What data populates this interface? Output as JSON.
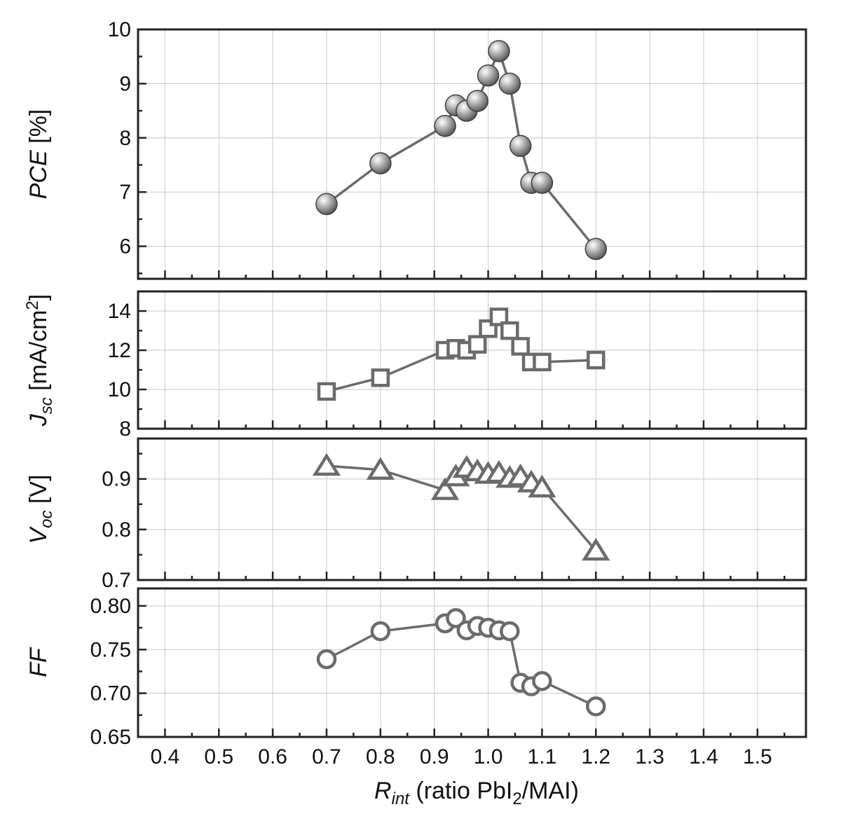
{
  "chart_data": {
    "type": "scatter",
    "x_axis": {
      "label_main": "R",
      "label_sub": "int",
      "label_rest_a": " (ratio PbI",
      "label_rest_sub": "2",
      "label_rest_b": "/MAI)",
      "range": [
        0.35,
        1.59
      ],
      "ticks": [
        "0.4",
        "0.5",
        "0.6",
        "0.7",
        "0.8",
        "0.9",
        "1.0",
        "1.1",
        "1.2",
        "1.3",
        "1.4",
        "1.5"
      ],
      "minor_ticks": true,
      "grid": true
    },
    "x": [
      0.7,
      0.8,
      0.92,
      0.94,
      0.96,
      0.98,
      1.0,
      1.02,
      1.04,
      1.06,
      1.08,
      1.1,
      1.2
    ],
    "panels": [
      {
        "id": "pce",
        "ylabel_italic": "PCE",
        "ylabel_rest": " [%]",
        "ylim": [
          5.4,
          10.0
        ],
        "yticks": [
          "6",
          "7",
          "8",
          "9",
          "10"
        ],
        "marker": "sphere",
        "color": "#7a7a7a",
        "values": [
          6.78,
          7.53,
          8.22,
          8.6,
          8.5,
          8.68,
          9.15,
          9.6,
          9.0,
          7.85,
          7.17,
          7.17,
          5.95
        ]
      },
      {
        "id": "jsc",
        "ylabel_italic": "J",
        "ylabel_sub": "sc",
        "ylabel_rest": " [mA/cm",
        "ylabel_sup": "2",
        "ylabel_end": "]",
        "ylim": [
          8,
          15
        ],
        "yticks": [
          "8",
          "10",
          "12",
          "14"
        ],
        "marker": "square",
        "color": "#6b6b6b",
        "values": [
          9.9,
          10.6,
          12.0,
          12.1,
          12.0,
          12.3,
          13.1,
          13.7,
          13.0,
          12.2,
          11.4,
          11.4,
          11.5
        ]
      },
      {
        "id": "voc",
        "ylabel_italic": "V",
        "ylabel_sub": "oc",
        "ylabel_rest": " [V]",
        "ylim": [
          0.7,
          0.98
        ],
        "yticks": [
          "0.7",
          "0.8",
          "0.9"
        ],
        "marker": "triangle",
        "color": "#6b6b6b",
        "values": [
          0.926,
          0.918,
          0.878,
          0.905,
          0.922,
          0.915,
          0.91,
          0.912,
          0.902,
          0.905,
          0.893,
          0.883,
          0.758
        ]
      },
      {
        "id": "ff",
        "ylabel_italic": "FF",
        "ylim": [
          0.65,
          0.82
        ],
        "yticks": [
          "0.65",
          "0.70",
          "0.75",
          "0.80"
        ],
        "marker": "circle",
        "color": "#6b6b6b",
        "values": [
          0.739,
          0.771,
          0.78,
          0.786,
          0.772,
          0.777,
          0.775,
          0.772,
          0.771,
          0.712,
          0.708,
          0.714,
          0.685
        ]
      }
    ]
  }
}
